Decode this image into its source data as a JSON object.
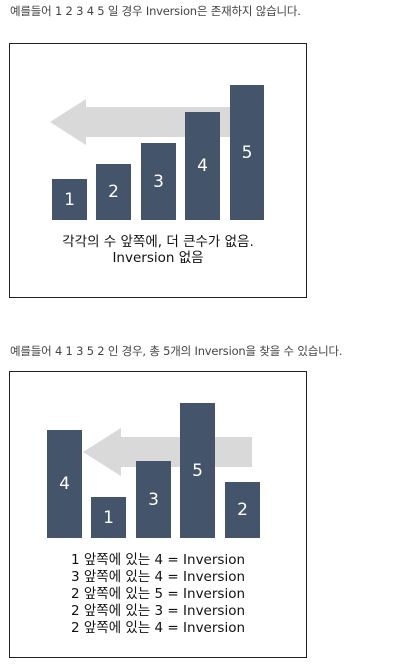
{
  "intro1": "예를들어 1 2 3 4 5 일 경우 Inversion은 존재하지 않습니다.",
  "figure1": {
    "bars": [
      "1",
      "2",
      "3",
      "4",
      "5"
    ],
    "caption_line1": "각각의 수 앞쪽에, 더 큰수가 없음.",
    "caption_line2": "Inversion 없음"
  },
  "intro2": "예를들어 4 1 3 5 2 인 경우, 총 5개의 Inversion을 찾을 수 있습니다.",
  "figure2": {
    "bars": [
      "4",
      "1",
      "3",
      "5",
      "2"
    ],
    "pairs": [
      "1 앞쪽에 있는 4 = Inversion",
      "3 앞쪽에 있는 4 = Inversion",
      "2 앞쪽에 있는 5 = Inversion",
      "2 앞쪽에 있는 3 = Inversion",
      "2 앞쪽에 있는 4 = Inversion"
    ]
  },
  "colors": {
    "bar": "#44546a",
    "arrow": "#d9d9d9"
  }
}
